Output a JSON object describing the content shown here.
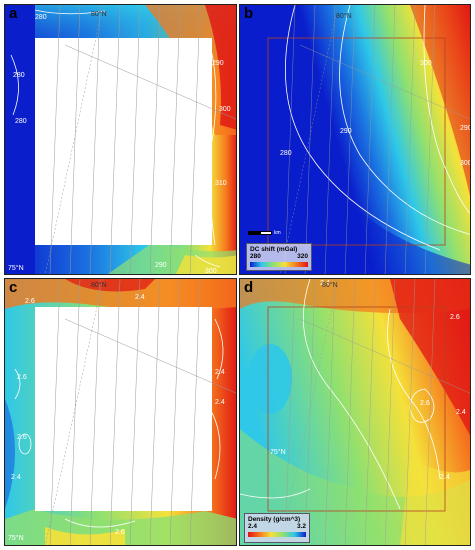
{
  "panels": [
    {
      "label": "a",
      "latitude": "75°N",
      "lat_top": "80°N",
      "contours": [
        "280",
        "280",
        "290",
        "300",
        "310",
        "280",
        "290",
        "300"
      ]
    },
    {
      "label": "b",
      "latitude": "",
      "lat_top": "80°N",
      "contours": [
        "280",
        "290",
        "300",
        "290",
        "300"
      ]
    },
    {
      "label": "c",
      "latitude": "75°N",
      "lat_top": "80°N",
      "contours": [
        "2.6",
        "2.4",
        "2.4",
        "2.6",
        "2.6",
        "2.4",
        "2.6",
        "2.4"
      ]
    },
    {
      "label": "d",
      "latitude": "75°N",
      "lat_top": "80°N",
      "contours": [
        "2.4",
        "2.6",
        "2.4",
        "2.6",
        "2.4"
      ]
    }
  ],
  "legend_b": {
    "title": "DC shift (mGal)",
    "min": "280",
    "max": "320"
  },
  "legend_d": {
    "title": "Density (g/cm^3)",
    "min": "2.4",
    "max": "3.2"
  },
  "scalebar": {
    "label": "km"
  },
  "colors": {
    "blue": "#0a1ecc",
    "cyan": "#2fc8e8",
    "green": "#8fe070",
    "yellow": "#f5e13a",
    "orange": "#f5781e",
    "red": "#e01414"
  }
}
